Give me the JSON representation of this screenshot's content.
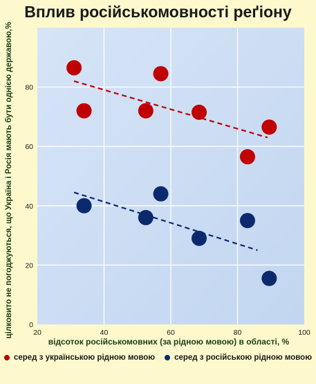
{
  "chart_data": {
    "type": "scatter",
    "title": "Вплив російськомовності реґіону",
    "xlabel": "відсоток російськомовних (за рідною мовою) в області, %",
    "ylabel": "цілковито не погоджуються, що Україна і Росія мають бути однією державою,%",
    "xlim": [
      20,
      100
    ],
    "ylim": [
      0,
      100
    ],
    "xticks": [
      20,
      40,
      60,
      80,
      100
    ],
    "yticks": [
      0,
      20,
      40,
      60,
      80
    ],
    "grid": true,
    "legend_position": "bottom",
    "series": [
      {
        "name": "серед з українською рідною мовою",
        "color": "#c00000",
        "points": [
          {
            "x": 31,
            "y": 86.5
          },
          {
            "x": 34,
            "y": 72
          },
          {
            "x": 52.5,
            "y": 72
          },
          {
            "x": 57,
            "y": 84.5
          },
          {
            "x": 68.5,
            "y": 71.5
          },
          {
            "x": 83,
            "y": 56.5
          },
          {
            "x": 89.5,
            "y": 66.5
          }
        ],
        "trend": [
          {
            "x": 31,
            "y": 82
          },
          {
            "x": 89,
            "y": 63
          }
        ]
      },
      {
        "name": "серед з російською рідною мовою",
        "color": "#0b2a6e",
        "points": [
          {
            "x": 34,
            "y": 40
          },
          {
            "x": 52.5,
            "y": 36
          },
          {
            "x": 57,
            "y": 44
          },
          {
            "x": 68.5,
            "y": 29
          },
          {
            "x": 83,
            "y": 35
          },
          {
            "x": 89.5,
            "y": 15.5
          }
        ],
        "trend": [
          {
            "x": 31,
            "y": 44.5
          },
          {
            "x": 86,
            "y": 25
          }
        ]
      }
    ]
  }
}
